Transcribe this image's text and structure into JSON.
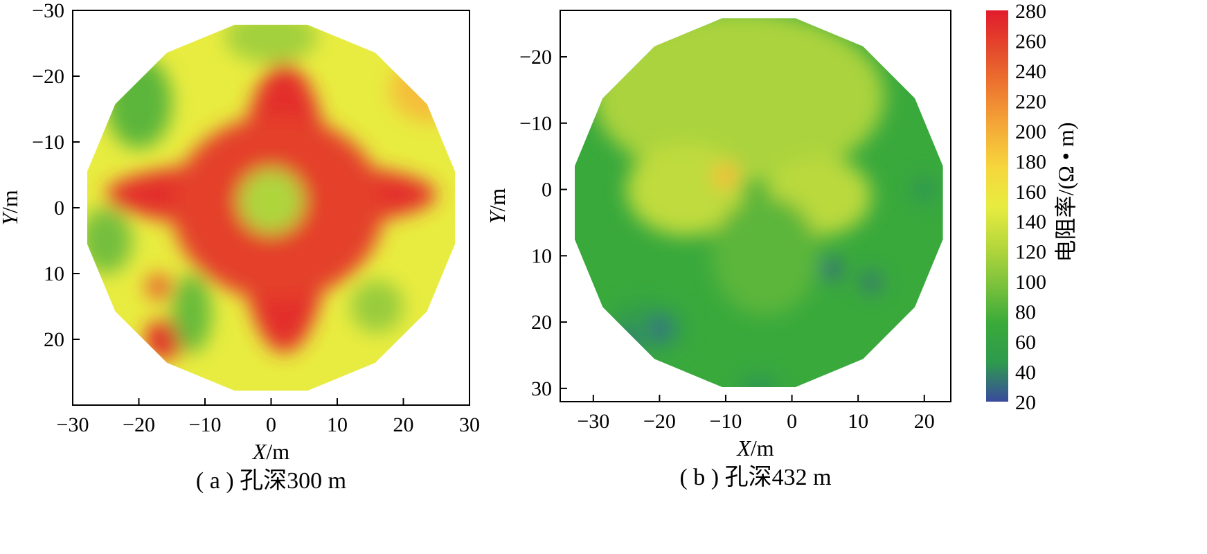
{
  "chart_data": [
    {
      "type": "heatmap",
      "caption": "( a ) 孔深300 m",
      "xlabel_italic": "X",
      "xlabel_unit": "/m",
      "ylabel_italic": "Y",
      "ylabel_unit": "/m",
      "xlim": [
        -30,
        30
      ],
      "ylim": [
        30,
        -30
      ],
      "xticks": [
        "−30",
        "−20",
        "−10",
        "0",
        "10",
        "20",
        "30"
      ],
      "yticks": [
        "−30",
        "−20",
        "−10",
        "0",
        "10",
        "20"
      ],
      "background_value": 150,
      "features": [
        {
          "x": 0,
          "y": -2,
          "rx": 25,
          "ry": 5,
          "value": 270
        },
        {
          "x": 2,
          "y": 0,
          "rx": 7,
          "ry": 22,
          "value": 270
        },
        {
          "x": 1,
          "y": 0,
          "rx": 16,
          "ry": 14,
          "value": 260
        },
        {
          "x": 0,
          "y": -1,
          "rx": 5,
          "ry": 5,
          "value": 120
        },
        {
          "x": -16,
          "y": 20,
          "rx": 3,
          "ry": 3,
          "value": 275
        },
        {
          "x": -17,
          "y": 12,
          "rx": 2,
          "ry": 2,
          "value": 240
        },
        {
          "x": -20,
          "y": -16,
          "rx": 5,
          "ry": 7,
          "value": 85
        },
        {
          "x": -25,
          "y": 5,
          "rx": 4,
          "ry": 5,
          "value": 95
        },
        {
          "x": -12,
          "y": 16,
          "rx": 3,
          "ry": 6,
          "value": 90
        },
        {
          "x": 16,
          "y": 15,
          "rx": 4,
          "ry": 4,
          "value": 110
        },
        {
          "x": 0,
          "y": -26,
          "rx": 7,
          "ry": 4,
          "value": 115
        },
        {
          "x": 24,
          "y": -18,
          "rx": 6,
          "ry": 5,
          "value": 190
        }
      ]
    },
    {
      "type": "heatmap",
      "caption": "( b ) 孔深432 m",
      "xlabel_italic": "X",
      "xlabel_unit": "/m",
      "ylabel_italic": "Y",
      "ylabel_unit": "/m",
      "xlim": [
        -35,
        24
      ],
      "ylim": [
        32,
        -27
      ],
      "xticks": [
        "−30",
        "−20",
        "−10",
        "0",
        "10",
        "20"
      ],
      "yticks": [
        "−20",
        "−10",
        "0",
        "10",
        "20",
        "30"
      ],
      "background_value": 70,
      "features": [
        {
          "x": -8,
          "y": -14,
          "rx": 22,
          "ry": 13,
          "value": 118
        },
        {
          "x": -16,
          "y": 0,
          "rx": 9,
          "ry": 7,
          "value": 128
        },
        {
          "x": 4,
          "y": 1,
          "rx": 8,
          "ry": 6,
          "value": 125
        },
        {
          "x": -10,
          "y": -2,
          "rx": 2,
          "ry": 2,
          "value": 190
        },
        {
          "x": -4,
          "y": 10,
          "rx": 8,
          "ry": 9,
          "value": 85
        },
        {
          "x": -22,
          "y": 21,
          "rx": 6,
          "ry": 4,
          "value": 50
        },
        {
          "x": -20,
          "y": 21,
          "rx": 1.5,
          "ry": 1.5,
          "value": 25
        },
        {
          "x": -25,
          "y": 23,
          "rx": 1.5,
          "ry": 1.5,
          "value": 28
        },
        {
          "x": 6,
          "y": 12,
          "rx": 1.5,
          "ry": 1.5,
          "value": 28
        },
        {
          "x": 12,
          "y": 14,
          "rx": 1.5,
          "ry": 1.5,
          "value": 32
        },
        {
          "x": 20,
          "y": 0,
          "rx": 2,
          "ry": 2,
          "value": 45
        },
        {
          "x": -5,
          "y": 30,
          "rx": 3,
          "ry": 2,
          "value": 45
        }
      ]
    }
  ],
  "colorbar": {
    "label": "电阻率/(Ω • m)",
    "ticks": [
      "280",
      "260",
      "240",
      "220",
      "200",
      "180",
      "160",
      "140",
      "120",
      "100",
      "80",
      "60",
      "40",
      "20"
    ],
    "range": [
      20,
      280
    ],
    "colors": [
      "#3b4a9e",
      "#2e9a4e",
      "#3aaa3a",
      "#7cc23c",
      "#b8d83c",
      "#e8ec40",
      "#f6d63c",
      "#f4aa38",
      "#ee7a30",
      "#e44a2c",
      "#e21b2c"
    ]
  }
}
